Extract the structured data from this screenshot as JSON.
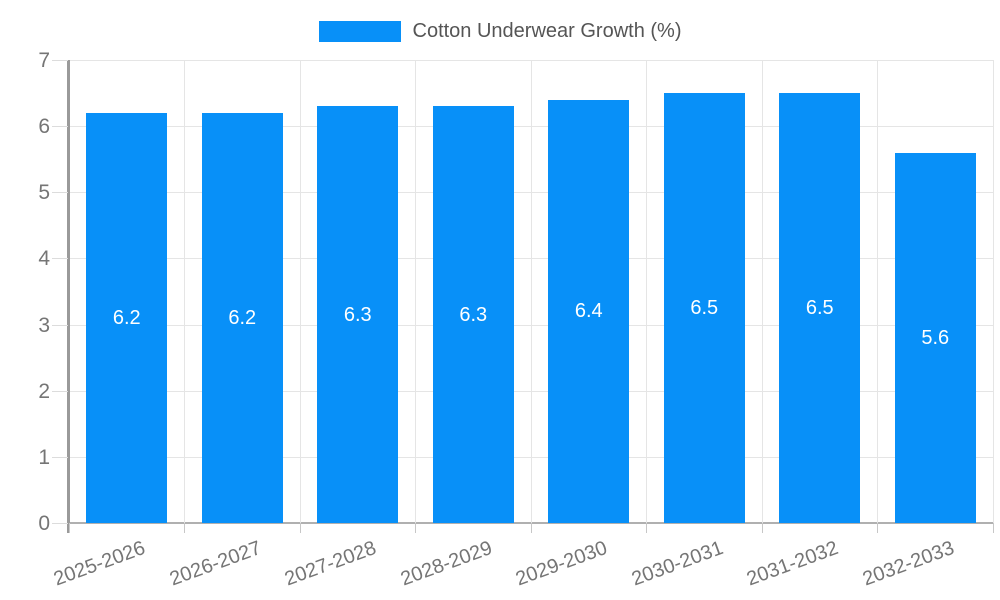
{
  "legend": {
    "label": "Cotton Underwear Growth (%)",
    "swatch_color": "#0890f8"
  },
  "chart_data": {
    "type": "bar",
    "title": "Cotton Underwear Growth (%)",
    "categories": [
      "2025-2026",
      "2026-2027",
      "2027-2028",
      "2028-2029",
      "2029-2030",
      "2030-2031",
      "2031-2032",
      "2032-2033"
    ],
    "series": [
      {
        "name": "Cotton Underwear Growth (%)",
        "values": [
          6.2,
          6.2,
          6.3,
          6.3,
          6.4,
          6.5,
          6.5,
          5.6
        ]
      }
    ],
    "data_labels": [
      "6.2",
      "6.2",
      "6.3",
      "6.3",
      "6.4",
      "6.5",
      "6.5",
      "5.6"
    ],
    "xlabel": "",
    "ylabel": "",
    "ylim": [
      0,
      7
    ],
    "yticks": [
      0,
      1,
      2,
      3,
      4,
      5,
      6,
      7
    ],
    "grid": true,
    "legend_position": "top",
    "bar_color": "#0890f8",
    "data_label_color": "#ffffff"
  },
  "colors": {
    "bar": "#0890f8",
    "gridline": "#e5e5e5",
    "baseline": "#b0b0b0",
    "axis_line": "#9a9a9a",
    "tick_text": "#757575",
    "legend_text": "#555555",
    "background": "#ffffff"
  }
}
